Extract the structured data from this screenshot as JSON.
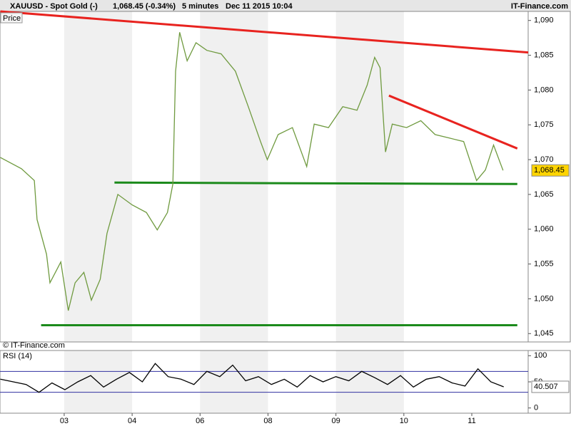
{
  "chart_data": [
    {
      "type": "line",
      "title": "XAUUSD - Spot Gold (-)",
      "subtitle": "1,068.45 (-0.34%)",
      "interval": "5 minutes",
      "timestamp": "Dec 11 2015 10:04",
      "source": "IT-Finance.com",
      "watermark": "© IT-Finance.com",
      "panel_label": "Price",
      "x": [
        0.06,
        0.37,
        0.56,
        0.6,
        0.74,
        0.79,
        0.95,
        1.06,
        1.16,
        1.29,
        1.4,
        1.53,
        1.63,
        1.79,
        2.0,
        2.21,
        2.37,
        2.52,
        2.6,
        2.64,
        2.7,
        2.81,
        2.94,
        3.1,
        3.31,
        3.52,
        3.71,
        3.89,
        3.99,
        4.15,
        4.36,
        4.57,
        4.68,
        4.89,
        5.1,
        5.31,
        5.46,
        5.57,
        5.65,
        5.73,
        5.83,
        6.04,
        6.25,
        6.46,
        6.67,
        6.88,
        7.07,
        7.2,
        7.32,
        7.46
      ],
      "series": [
        {
          "color": "#6f9a3f",
          "values": [
            1070.3,
            1068.7,
            1067.0,
            1061.4,
            1056.4,
            1052.3,
            1055.3,
            1048.3,
            1052.3,
            1053.8,
            1049.8,
            1052.8,
            1059.4,
            1065.0,
            1063.5,
            1062.4,
            1059.9,
            1062.4,
            1066.5,
            1082.7,
            1088.3,
            1084.2,
            1086.8,
            1085.7,
            1085.2,
            1082.7,
            1077.6,
            1072.6,
            1070.0,
            1073.6,
            1074.6,
            1069.0,
            1075.1,
            1074.6,
            1077.6,
            1077.1,
            1080.7,
            1084.7,
            1083.2,
            1071.1,
            1075.1,
            1074.6,
            1075.6,
            1073.6,
            1073.1,
            1072.6,
            1067.0,
            1068.5,
            1072.1,
            1068.45
          ]
        }
      ],
      "last": {
        "value": 1068.45,
        "label": "1,068.45"
      },
      "lines": [
        {
          "color": "#e8231f",
          "x": [
            0.06,
            7.83
          ],
          "values": [
            1091.3,
            1085.4
          ]
        },
        {
          "color": "#e8231f",
          "x": [
            5.78,
            7.67
          ],
          "values": [
            1079.2,
            1071.6
          ]
        },
        {
          "color": "#1b8a1b",
          "x": [
            1.74,
            7.67
          ],
          "values": [
            1066.7,
            1066.5
          ]
        },
        {
          "color": "#1b8a1b",
          "x": [
            0.66,
            7.67
          ],
          "values": [
            1046.2,
            1046.2
          ]
        }
      ],
      "xlim": [
        0.055,
        7.83
      ],
      "xticks": [
        {
          "value": 1,
          "label": "03"
        },
        {
          "value": 2,
          "label": "04"
        },
        {
          "value": 3,
          "label": "06"
        },
        {
          "value": 4,
          "label": "08"
        },
        {
          "value": 5,
          "label": "09"
        },
        {
          "value": 6,
          "label": "10"
        },
        {
          "value": 7,
          "label": "11"
        }
      ],
      "ylim": [
        1043.8,
        1091.3
      ],
      "yticks": [
        {
          "value": 1045,
          "label": "1,045"
        },
        {
          "value": 1050,
          "label": "1,050"
        },
        {
          "value": 1055,
          "label": "1,055"
        },
        {
          "value": 1060,
          "label": "1,060"
        },
        {
          "value": 1065,
          "label": "1,065"
        },
        {
          "value": 1070,
          "label": "1,070"
        },
        {
          "value": 1075,
          "label": "1,075"
        },
        {
          "value": 1080,
          "label": "1,080"
        },
        {
          "value": 1085,
          "label": "1,085"
        },
        {
          "value": 1090,
          "label": "1,090"
        }
      ]
    },
    {
      "type": "line",
      "title": "RSI (14)",
      "x": [
        0.06,
        0.25,
        0.44,
        0.63,
        0.82,
        1.01,
        1.2,
        1.39,
        1.58,
        1.77,
        1.96,
        2.15,
        2.34,
        2.53,
        2.72,
        2.91,
        3.1,
        3.29,
        3.48,
        3.67,
        3.86,
        4.05,
        4.24,
        4.43,
        4.62,
        4.81,
        5.0,
        5.19,
        5.38,
        5.57,
        5.76,
        5.95,
        6.14,
        6.33,
        6.52,
        6.71,
        6.9,
        7.09,
        7.28,
        7.47
      ],
      "series": [
        {
          "color": "#000000",
          "values": [
            55,
            50,
            45,
            30,
            48,
            35,
            50,
            62,
            40,
            55,
            68,
            50,
            85,
            60,
            55,
            45,
            70,
            60,
            82,
            52,
            60,
            45,
            55,
            40,
            62,
            50,
            60,
            52,
            70,
            58,
            45,
            62,
            40,
            55,
            60,
            48,
            42,
            75,
            50,
            40.507
          ]
        }
      ],
      "levels": [
        30,
        70
      ],
      "level_color": "#3030a0",
      "xlim": [
        0.055,
        7.83
      ],
      "ylim": [
        -10,
        110
      ],
      "yticks": [
        0,
        50,
        100
      ]
    }
  ]
}
